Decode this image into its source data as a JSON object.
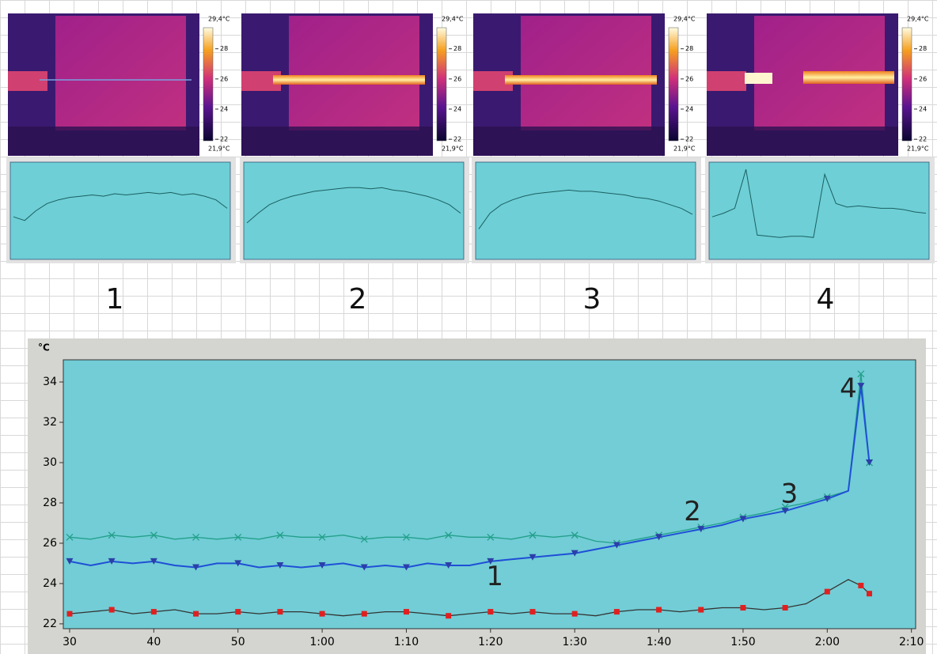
{
  "thermal_panels": [
    {
      "number": "1",
      "max_label": {
        "value": 29.4,
        "label": "29,4°C"
      },
      "min_label": {
        "value": 21.9,
        "label": "21,9°C"
      },
      "scale_ticks": [
        28,
        26,
        24,
        22
      ],
      "profile": [
        24.5,
        24.2,
        25.0,
        25.6,
        25.9,
        26.1,
        26.2,
        26.3,
        26.2,
        26.4,
        26.3,
        26.4,
        26.5,
        26.4,
        26.5,
        26.3,
        26.4,
        26.2,
        25.9,
        25.2
      ]
    },
    {
      "number": "2",
      "max_label": {
        "value": 29.4,
        "label": "29,4°C"
      },
      "min_label": {
        "value": 21.9,
        "label": "21,9°C"
      },
      "scale_ticks": [
        28,
        26,
        24,
        22
      ],
      "profile": [
        24.0,
        24.8,
        25.5,
        25.9,
        26.2,
        26.4,
        26.6,
        26.7,
        26.8,
        26.9,
        26.9,
        26.8,
        26.9,
        26.7,
        26.6,
        26.4,
        26.2,
        25.9,
        25.5,
        24.8
      ]
    },
    {
      "number": "3",
      "max_label": {
        "value": 29.4,
        "label": "29,4°C"
      },
      "min_label": {
        "value": 21.9,
        "label": "21,9°C"
      },
      "scale_ticks": [
        28,
        26,
        24,
        22
      ],
      "profile": [
        23.5,
        24.8,
        25.5,
        25.9,
        26.2,
        26.4,
        26.5,
        26.6,
        26.7,
        26.6,
        26.6,
        26.5,
        26.4,
        26.3,
        26.1,
        26.0,
        25.8,
        25.5,
        25.2,
        24.7
      ]
    },
    {
      "number": "4",
      "max_label": {
        "value": 29.4,
        "label": "29,4°C"
      },
      "min_label": {
        "value": 21.9,
        "label": "21,9°C"
      },
      "scale_ticks": [
        28,
        26,
        24,
        22
      ],
      "profile": [
        24.5,
        24.8,
        25.2,
        28.4,
        23.0,
        22.9,
        22.8,
        22.9,
        22.9,
        22.8,
        28.0,
        25.6,
        25.3,
        25.4,
        25.3,
        25.2,
        25.2,
        25.1,
        24.9,
        24.8
      ]
    }
  ],
  "profile_ylim": [
    21,
    29
  ],
  "chart_data": {
    "type": "line",
    "y_label": "°C",
    "x": [
      30,
      32.5,
      35,
      37.5,
      40,
      42.5,
      45,
      47.5,
      50,
      52.5,
      55,
      57.5,
      60,
      62.5,
      65,
      67.5,
      70,
      72.5,
      75,
      77.5,
      80,
      82.5,
      85,
      87.5,
      90,
      92.5,
      95,
      97.5,
      100,
      102.5,
      105,
      107.5,
      110,
      112.5,
      115,
      117.5,
      120,
      122.5,
      124,
      125
    ],
    "series": [
      {
        "color": "#23a08a",
        "marker": "x",
        "marker_color": "#23a08a",
        "values": [
          26.3,
          26.2,
          26.4,
          26.3,
          26.4,
          26.2,
          26.3,
          26.2,
          26.3,
          26.2,
          26.4,
          26.3,
          26.3,
          26.4,
          26.2,
          26.3,
          26.3,
          26.2,
          26.4,
          26.3,
          26.3,
          26.2,
          26.4,
          26.3,
          26.4,
          26.1,
          26.0,
          26.2,
          26.4,
          26.6,
          26.8,
          27.0,
          27.3,
          27.5,
          27.8,
          28.0,
          28.3,
          28.6,
          34.4,
          30.0
        ]
      },
      {
        "color": "#1f4fd6",
        "marker": "triangle",
        "marker_color": "#2b3fa8",
        "values": [
          25.1,
          24.9,
          25.1,
          25.0,
          25.1,
          24.9,
          24.8,
          25.0,
          25.0,
          24.8,
          24.9,
          24.8,
          24.9,
          25.0,
          24.8,
          24.9,
          24.8,
          25.0,
          24.9,
          24.9,
          25.1,
          25.2,
          25.3,
          25.4,
          25.5,
          25.7,
          25.9,
          26.1,
          26.3,
          26.5,
          26.7,
          26.9,
          27.2,
          27.4,
          27.6,
          27.9,
          28.2,
          28.6,
          33.8,
          30.0
        ]
      },
      {
        "color": "#333333",
        "marker": "square",
        "marker_color": "#e02020",
        "values": [
          22.5,
          22.6,
          22.7,
          22.5,
          22.6,
          22.7,
          22.5,
          22.5,
          22.6,
          22.5,
          22.6,
          22.6,
          22.5,
          22.4,
          22.5,
          22.6,
          22.6,
          22.5,
          22.4,
          22.5,
          22.6,
          22.5,
          22.6,
          22.5,
          22.5,
          22.4,
          22.6,
          22.7,
          22.7,
          22.6,
          22.7,
          22.8,
          22.8,
          22.7,
          22.8,
          23.0,
          23.6,
          24.2,
          23.9,
          23.5
        ]
      }
    ],
    "annotations": [
      {
        "text": "1",
        "x": 80.5,
        "y": 24.3
      },
      {
        "text": "2",
        "x": 104,
        "y": 27.5
      },
      {
        "text": "3",
        "x": 115.5,
        "y": 28.4
      },
      {
        "text": "4",
        "x": 122.5,
        "y": 33.6
      }
    ],
    "xlim": [
      29.25,
      130.5
    ],
    "ylim": [
      21.76,
      35.1
    ],
    "xticks": [
      30,
      40,
      50,
      {
        "value": 60,
        "label": "1:00"
      },
      {
        "value": 70,
        "label": "1:10"
      },
      {
        "value": 80,
        "label": "1:20"
      },
      {
        "value": 90,
        "label": "1:30"
      },
      {
        "value": 100,
        "label": "1:40"
      },
      {
        "value": 110,
        "label": "1:50"
      },
      {
        "value": 120,
        "label": "2:00"
      },
      {
        "value": 130,
        "label": "2:10"
      }
    ],
    "yticks": [
      22,
      24,
      26,
      28,
      30,
      32,
      34
    ]
  }
}
